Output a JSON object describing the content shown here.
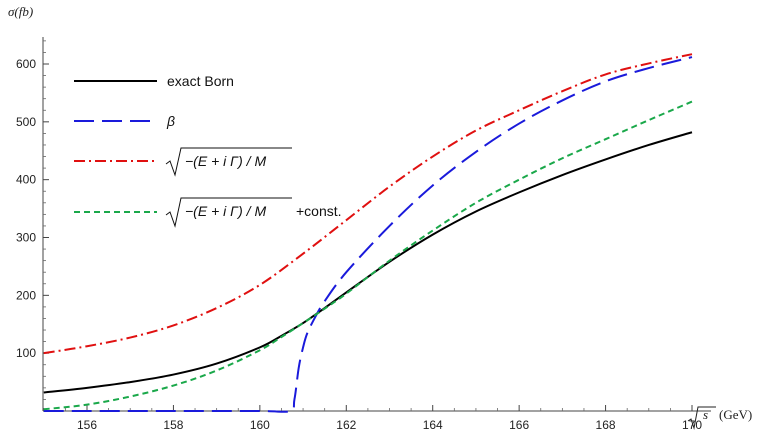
{
  "chart_data": {
    "type": "line",
    "title": "",
    "xlabel": "√s (GeV)",
    "ylabel": "σ(fb)",
    "xlim": [
      155,
      170.5
    ],
    "ylim": [
      0,
      640
    ],
    "xticks": [
      156,
      158,
      160,
      162,
      164,
      166,
      168,
      170
    ],
    "yticks": [
      100,
      200,
      300,
      400,
      500,
      600
    ],
    "grid": false,
    "legend_position": "top-left",
    "series": [
      {
        "name": "exact Born",
        "color": "#000000",
        "dash": "solid",
        "x": [
          155,
          156,
          157,
          158,
          159,
          160,
          160.5,
          161,
          161.5,
          162,
          163,
          164,
          165,
          166,
          167,
          168,
          169,
          170
        ],
        "y": [
          32,
          40,
          50,
          63,
          82,
          110,
          130,
          152,
          178,
          205,
          258,
          305,
          345,
          378,
          408,
          435,
          460,
          482
        ]
      },
      {
        "name": "β",
        "color": "#1a1adb",
        "dash": "long-dash",
        "x": [
          155,
          156,
          158,
          160,
          160.7,
          160.8,
          160.9,
          161.0,
          161.1,
          161.3,
          161.5,
          162,
          163,
          164,
          165,
          166,
          167,
          168,
          169,
          170
        ],
        "y": [
          0,
          0,
          0,
          0,
          0,
          20,
          75,
          110,
          135,
          165,
          190,
          240,
          320,
          390,
          448,
          497,
          537,
          570,
          593,
          612
        ]
      },
      {
        "name": "√−(E+iΓ)/M",
        "color": "#e01010",
        "dash": "dash-dot",
        "x": [
          155,
          156,
          157,
          158,
          159,
          160,
          161,
          162,
          163,
          164,
          165,
          166,
          167,
          168,
          169,
          170
        ],
        "y": [
          100,
          112,
          127,
          148,
          178,
          218,
          272,
          330,
          388,
          440,
          485,
          520,
          553,
          582,
          601,
          617
        ]
      },
      {
        "name": "√−(E+iΓ)/M +const.",
        "color": "#1aa84a",
        "dash": "short-dash",
        "x": [
          155,
          156,
          157,
          158,
          159,
          160,
          160.5,
          161,
          161.5,
          162,
          163,
          164,
          165,
          166,
          167,
          168,
          169,
          170
        ],
        "y": [
          3,
          11,
          25,
          44,
          70,
          105,
          128,
          152,
          177,
          203,
          260,
          312,
          360,
          400,
          437,
          470,
          503,
          535
        ]
      }
    ]
  },
  "legend": {
    "items": [
      {
        "label": "exact Born"
      },
      {
        "label": "β"
      },
      {
        "label_inner": "−(E + i Γ) / M",
        "label_suffix": ""
      },
      {
        "label_inner": "−(E + i Γ) / M",
        "label_suffix": "+const."
      }
    ]
  },
  "axes": {
    "x_title_sqrt": "s",
    "x_title_unit": "(GeV)",
    "y_title": "σ(fb)"
  }
}
